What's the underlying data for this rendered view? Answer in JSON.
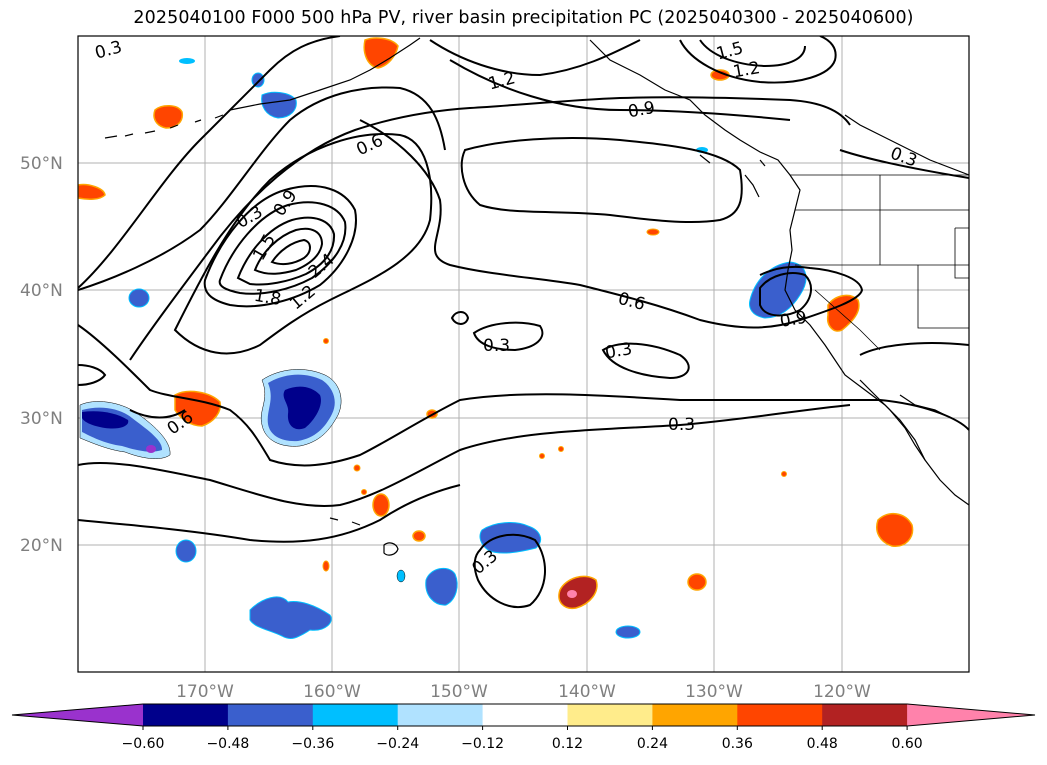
{
  "title": "2025040100 F000 500 hPa PV, river basin precipitation PC (2025040300 - 2025040600)",
  "map": {
    "projection": "PlateCarree",
    "extent": {
      "lon": [
        -180,
        -110
      ],
      "lat": [
        10,
        60
      ]
    },
    "latitude_labels": [
      "20°N",
      "30°N",
      "40°N",
      "50°N"
    ],
    "longitude_labels": [
      "170°W",
      "160°W",
      "150°W",
      "140°W",
      "130°W",
      "120°W"
    ],
    "contour_labels": [
      "0.3",
      "0.3",
      "0.3",
      "0.3",
      "0.3",
      "0.3",
      "0.3",
      "0.6",
      "0.6",
      "0.6",
      "0.9",
      "0.9",
      "0.9",
      "1.2",
      "1.2",
      "1.2",
      "1.5",
      "1.5",
      "1.8",
      "2.4"
    ]
  },
  "colorbar": {
    "ticks": [
      "−0.60",
      "−0.48",
      "−0.36",
      "−0.24",
      "−0.12",
      "0.12",
      "0.24",
      "0.36",
      "0.48",
      "0.60"
    ],
    "colors": [
      "#9a32cd",
      "#00008b",
      "#3a5fcd",
      "#00bfff",
      "#b0e2ff",
      "#ffffff",
      "#ffec8b",
      "#ffa500",
      "#ff4500",
      "#b22222",
      "#ff82ab"
    ]
  }
}
